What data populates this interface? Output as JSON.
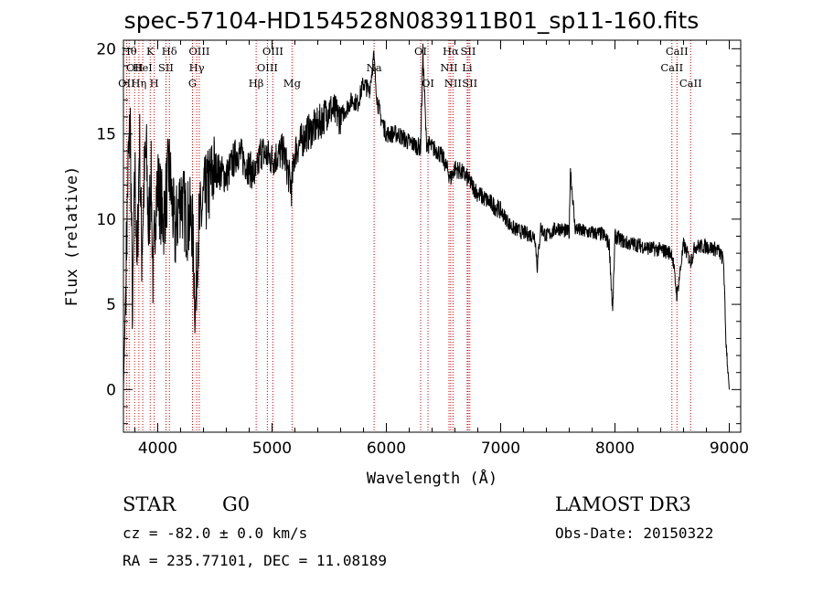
{
  "title": "spec-57104-HD154528N083911B01_sp11-160.fits",
  "info": {
    "class_label": "STAR",
    "subclass_label": "G0",
    "survey": "LAMOST DR3",
    "cz": "cz = -82.0 ± 0.0 km/s",
    "obs_date": "Obs-Date: 20150322",
    "radec": "RA = 235.77101, DEC =  11.08189"
  },
  "chart_data": {
    "type": "line",
    "title": "spec-57104-HD154528N083911B01_sp11-160.fits",
    "xlabel": "Wavelength (Å)",
    "ylabel": "Flux (relative)",
    "xlim": [
      3700,
      9100
    ],
    "ylim": [
      -2.5,
      20.5
    ],
    "xticks": [
      4000,
      5000,
      6000,
      7000,
      8000,
      9000
    ],
    "yticks": [
      0,
      5,
      10,
      15,
      20
    ],
    "grid": false,
    "colors": {
      "spectrum": "#000000",
      "lines": "#cc0000",
      "axes": "#000000"
    },
    "spectrum": {
      "name": "",
      "x": [
        3700,
        3720,
        3740,
        3760,
        3780,
        3800,
        3820,
        3840,
        3860,
        3880,
        3900,
        3920,
        3940,
        3960,
        3980,
        4000,
        4050,
        4100,
        4150,
        4200,
        4250,
        4300,
        4330,
        4350,
        4400,
        4450,
        4500,
        4600,
        4700,
        4800,
        4860,
        4900,
        5000,
        5100,
        5170,
        5200,
        5300,
        5400,
        5500,
        5600,
        5700,
        5750,
        5800,
        5850,
        5890,
        5920,
        5950,
        6000,
        6100,
        6200,
        6300,
        6320,
        6350,
        6400,
        6450,
        6500,
        6563,
        6600,
        6650,
        6700,
        6750,
        6800,
        6900,
        7000,
        7100,
        7200,
        7300,
        7320,
        7350,
        7400,
        7500,
        7600,
        7610,
        7650,
        7700,
        7800,
        7900,
        7950,
        7980,
        8000,
        8100,
        8200,
        8300,
        8400,
        8500,
        8542,
        8600,
        8662,
        8700,
        8800,
        8900,
        8950,
        8970,
        9000
      ],
      "y": [
        0,
        6,
        13,
        15.5,
        4,
        13,
        7,
        15,
        8,
        12,
        14,
        9,
        13,
        6,
        11,
        12,
        10,
        13,
        9,
        11.5,
        10,
        10,
        4.5,
        9,
        11,
        12,
        13,
        12.5,
        14,
        13,
        12.5,
        14,
        13.5,
        14,
        11.8,
        14,
        15,
        15.5,
        16.5,
        16,
        17,
        16.8,
        18,
        17.5,
        19.5,
        17,
        16,
        15,
        15,
        14.5,
        14.2,
        19.8,
        14.5,
        14.2,
        14,
        13.5,
        12.4,
        13,
        12.8,
        12.5,
        12,
        11.5,
        11,
        10.5,
        9.5,
        9.2,
        9,
        7.2,
        9.5,
        9,
        9.5,
        9.2,
        13,
        9.5,
        9.3,
        9.2,
        9.1,
        8.5,
        4.5,
        9,
        8.6,
        8.5,
        8.3,
        8.2,
        8.0,
        5.5,
        8.5,
        7.5,
        8.4,
        8.4,
        8.2,
        7.6,
        3.0,
        0
      ]
    },
    "lines": [
      {
        "x": 3727,
        "labels": [
          "OII"
        ],
        "row": 2
      },
      {
        "x": 3750,
        "labels": [
          "Hθ"
        ],
        "row": 0
      },
      {
        "x": 3798,
        "labels": [
          "OII"
        ],
        "row": 1
      },
      {
        "x": 3835,
        "labels": [
          "Hη"
        ],
        "row": 2
      },
      {
        "x": 3869,
        "labels": [
          "HeI"
        ],
        "row": 1
      },
      {
        "x": 3934,
        "labels": [
          "K"
        ],
        "row": 0
      },
      {
        "x": 3969,
        "labels": [
          "H"
        ],
        "row": 2
      },
      {
        "x": 4072,
        "labels": [
          "SII"
        ],
        "row": 1
      },
      {
        "x": 4102,
        "labels": [
          "Hδ"
        ],
        "row": 0
      },
      {
        "x": 4304,
        "labels": [
          "G"
        ],
        "row": 2
      },
      {
        "x": 4341,
        "labels": [
          "Hγ"
        ],
        "row": 1
      },
      {
        "x": 4363,
        "labels": [
          "OIII"
        ],
        "row": 0
      },
      {
        "x": 4861,
        "labels": [
          "Hβ"
        ],
        "row": 2
      },
      {
        "x": 4959,
        "labels": [
          "OIII"
        ],
        "row": 1
      },
      {
        "x": 5007,
        "labels": [
          "OIII"
        ],
        "row": 0
      },
      {
        "x": 5175,
        "labels": [
          "Mg"
        ],
        "row": 2
      },
      {
        "x": 5893,
        "labels": [
          "Na"
        ],
        "row": 1
      },
      {
        "x": 6300,
        "labels": [
          "OI"
        ],
        "row": 0
      },
      {
        "x": 6364,
        "labels": [
          "OI"
        ],
        "row": 2
      },
      {
        "x": 6548,
        "labels": [
          "NII"
        ],
        "row": 1
      },
      {
        "x": 6563,
        "labels": [
          "Hα"
        ],
        "row": 0
      },
      {
        "x": 6583,
        "labels": [
          "NII"
        ],
        "row": 2
      },
      {
        "x": 6707,
        "labels": [
          "Li"
        ],
        "row": 1
      },
      {
        "x": 6716,
        "labels": [
          "SII"
        ],
        "row": 0
      },
      {
        "x": 6730,
        "labels": [
          "SII"
        ],
        "row": 2
      },
      {
        "x": 8498,
        "labels": [
          "CaII"
        ],
        "row": 1
      },
      {
        "x": 8542,
        "labels": [
          "CaII"
        ],
        "row": 0
      },
      {
        "x": 8662,
        "labels": [
          "CaII"
        ],
        "row": 2
      }
    ]
  }
}
